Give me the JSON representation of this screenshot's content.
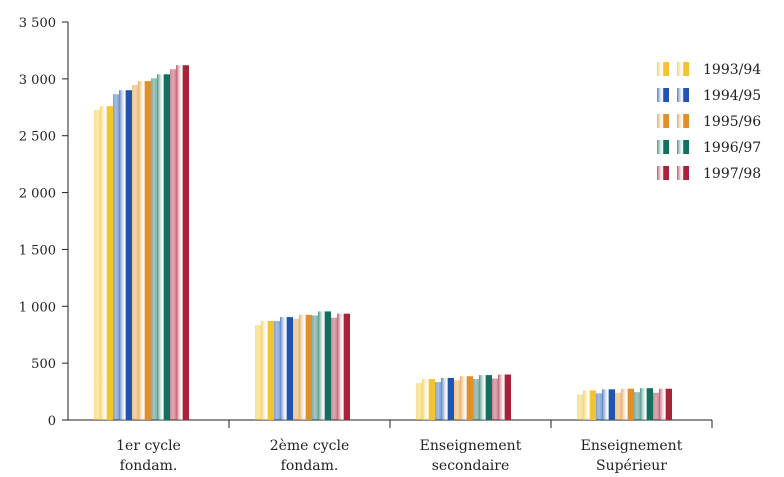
{
  "chart_data": {
    "type": "bar",
    "categories": [
      [
        "1er cycle",
        "fondam."
      ],
      [
        "2ème cycle",
        "fondam."
      ],
      [
        "Enseignement",
        "secondaire"
      ],
      [
        "Enseignement",
        "Supérieur"
      ]
    ],
    "y_ticks": [
      "0",
      "500",
      "1 000",
      "1 500",
      "2 000",
      "2 500",
      "3 000",
      "3 500"
    ],
    "ylim": [
      0,
      3500
    ],
    "legend_position": "top-right",
    "grid": false,
    "series": [
      {
        "name": "1993/94",
        "color": "#f2c431",
        "values": [
          2760,
          870,
          360,
          260
        ]
      },
      {
        "name": "1994/95",
        "color": "#1f55b0",
        "values": [
          2900,
          905,
          370,
          270
        ]
      },
      {
        "name": "1995/96",
        "color": "#e0902a",
        "values": [
          2980,
          925,
          385,
          275
        ]
      },
      {
        "name": "1996/97",
        "color": "#13705e",
        "values": [
          3040,
          955,
          395,
          280
        ]
      },
      {
        "name": "1997/98",
        "color": "#a8233a",
        "values": [
          3120,
          935,
          400,
          275
        ]
      }
    ]
  }
}
